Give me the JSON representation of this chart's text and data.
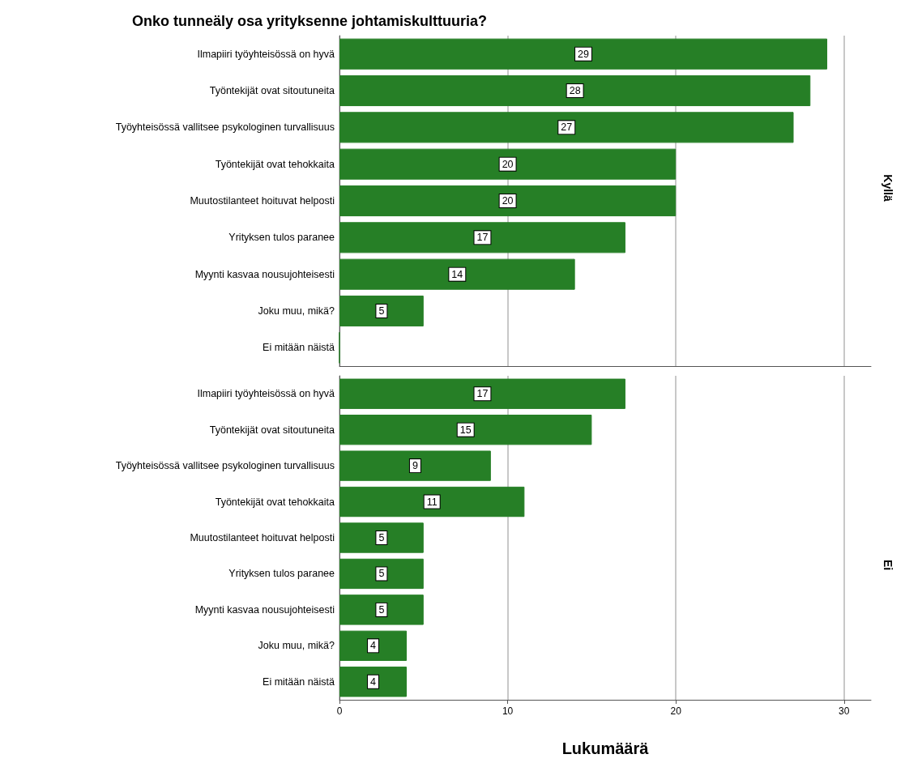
{
  "chart_data": [
    {
      "type": "bar",
      "orientation": "horizontal",
      "title": "Onko tunneäly osa yrityksenne johtamiskulttuuria?",
      "y2label": "Kyllä",
      "categories": [
        "Ilmapiiri työyhteisössä on hyvä",
        "Työntekijät ovat sitoutuneita",
        "Työyhteisössä vallitsee psykologinen turvallisuus",
        "Työntekijät ovat tehokkaita",
        "Muutostilanteet hoituvat helposti",
        "Yrityksen tulos paranee",
        "Myynti kasvaa nousujohteisesti",
        "Joku muu, mikä?",
        "Ei mitään näistä"
      ],
      "values": [
        29,
        28,
        27,
        20,
        20,
        17,
        14,
        5,
        0
      ],
      "value_labels": [
        "29",
        "28",
        "27",
        "20",
        "20",
        "17",
        "14",
        "5",
        null
      ],
      "color": "#267f26",
      "xlim": [
        0,
        31.6
      ],
      "xticks": [
        0,
        10,
        20,
        30
      ],
      "grid": "x",
      "tick_labels": "y"
    },
    {
      "type": "bar",
      "orientation": "horizontal",
      "xlabel": "Lukumäärä",
      "y2label": "Ei",
      "categories": [
        "Ilmapiiri työyhteisössä on hyvä",
        "Työntekijät ovat sitoutuneita",
        "Työyhteisössä vallitsee psykologinen turvallisuus",
        "Työntekijät ovat tehokkaita",
        "Muutostilanteet hoituvat helposti",
        "Yrityksen tulos paranee",
        "Myynti kasvaa nousujohteisesti",
        "Joku muu, mikä?",
        "Ei mitään näistä"
      ],
      "values": [
        17,
        15,
        9,
        11,
        5,
        5,
        5,
        4,
        4
      ],
      "color": "#267f26",
      "data_labels": true,
      "xlim": [
        0,
        31.6
      ],
      "xticks": [
        0,
        10,
        20,
        30
      ],
      "grid": "x"
    }
  ]
}
